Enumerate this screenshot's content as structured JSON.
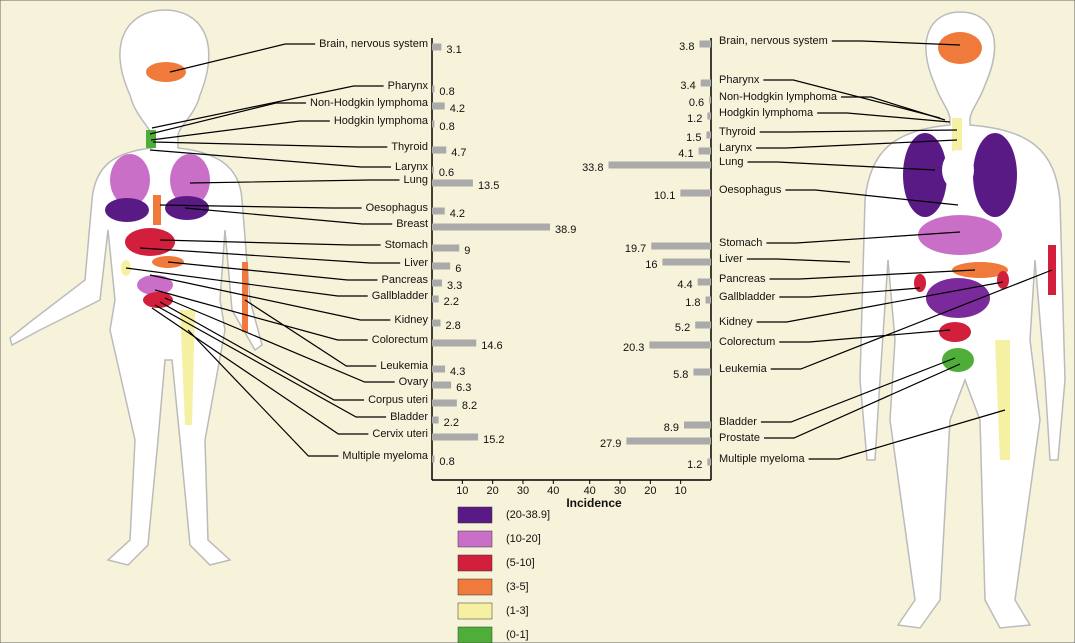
{
  "chart_data": [
    {
      "type": "bar",
      "orientation": "horizontal",
      "reversed": false,
      "color": "#aaaaaa",
      "categories": [
        "Brain, nervous system",
        "Pharynx",
        "Non-Hodgkin lymphoma",
        "Hodgkin lymphoma",
        "Thyroid",
        "Larynx",
        "Lung",
        "Oesophagus",
        "Breast",
        "Stomach",
        "Liver",
        "Pancreas",
        "Gallbladder",
        "Kidney",
        "Colorectum",
        "Leukemia",
        "Ovary",
        "Corpus uteri",
        "Bladder",
        "Cervix uteri",
        "Multiple myeloma"
      ],
      "values": [
        3.1,
        0.8,
        4.2,
        0.8,
        4.7,
        0.6,
        13.5,
        4.2,
        38.9,
        9,
        6,
        3.3,
        2.2,
        2.8,
        14.6,
        4.3,
        6.3,
        8.2,
        2.2,
        15.2,
        0.8
      ],
      "xlim": [
        0,
        46
      ],
      "xticks": [
        10,
        20,
        30,
        40
      ],
      "xlabel": "Incidence",
      "legend": [
        {
          "label": "(20-38.9]",
          "color": "#5a1a86"
        },
        {
          "label": "(10-20]",
          "color": "#c96fc8"
        },
        {
          "label": "(5-10]",
          "color": "#d21f3c"
        },
        {
          "label": "(3-5]",
          "color": "#f07a3c"
        },
        {
          "label": "(1-3]",
          "color": "#f6f1a2"
        },
        {
          "label": "(0-1]",
          "color": "#4fae3a"
        }
      ]
    },
    {
      "type": "bar",
      "orientation": "horizontal",
      "reversed": true,
      "color": "#aaaaaa",
      "categories": [
        "Brain, nervous system",
        "Pharynx",
        "Non-Hodgkin lymphoma",
        "Hodgkin lymphoma",
        "Thyroid",
        "Larynx",
        "Lung",
        "Oesophagus",
        "Stomach",
        "Liver",
        "Pancreas",
        "Gallbladder",
        "Kidney",
        "Colorectum",
        "Leukemia",
        "Bladder",
        "Prostate",
        "Multiple myeloma"
      ],
      "values": [
        3.8,
        3.4,
        0.6,
        1.2,
        1.5,
        4.1,
        33.8,
        10.1,
        19.7,
        16,
        4.4,
        1.8,
        5.2,
        20.3,
        5.8,
        8.9,
        27.9,
        1.2
      ],
      "xlim": [
        0,
        46
      ],
      "xticks": [
        10,
        20,
        30,
        40
      ]
    }
  ]
}
